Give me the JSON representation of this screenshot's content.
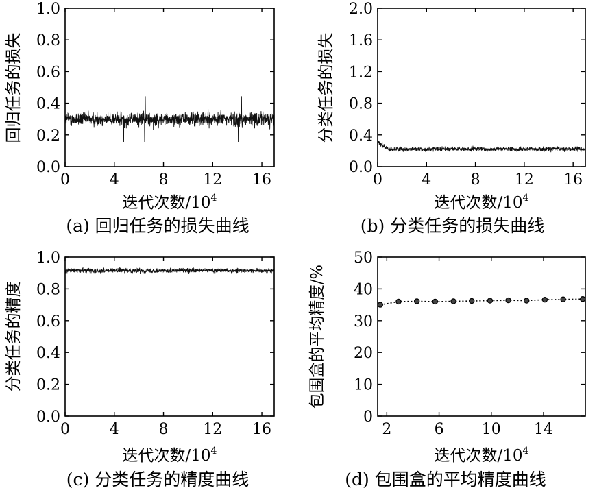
{
  "chart_data": [
    {
      "id": "a",
      "type": "line",
      "caption": "(a) 回归任务的损失曲线",
      "xlabel": "迭代次数/10",
      "xlabel_sup": "4",
      "ylabel": "回归任务的损失",
      "xlim": [
        0,
        17
      ],
      "ylim": [
        0,
        1.0
      ],
      "xticks": [
        "0",
        "4",
        "8",
        "12",
        "16"
      ],
      "yticks": [
        "0.0",
        "0.2",
        "0.4",
        "0.6",
        "0.8",
        "1.0"
      ],
      "series": [
        {
          "values_summary": {
            "mean": 0.3,
            "typical_min": 0.22,
            "typical_max": 0.38,
            "peak_max": 0.46
          }
        }
      ]
    },
    {
      "id": "b",
      "type": "line",
      "caption": "(b) 分类任务的损失曲线",
      "xlabel": "迭代次数/10",
      "xlabel_sup": "4",
      "ylabel": "分类任务的损失",
      "xlim": [
        0,
        17
      ],
      "ylim": [
        0,
        2.0
      ],
      "xticks": [
        "0",
        "4",
        "8",
        "12",
        "16"
      ],
      "yticks": [
        "0.0",
        "0.4",
        "0.8",
        "1.2",
        "1.6",
        "2.0"
      ],
      "series": [
        {
          "values_summary": {
            "start": 0.32,
            "mean": 0.22,
            "typical_min": 0.17,
            "typical_max": 0.27
          }
        }
      ]
    },
    {
      "id": "c",
      "type": "line",
      "caption": "(c) 分类任务的精度曲线",
      "xlabel": "迭代次数/10",
      "xlabel_sup": "4",
      "ylabel": "分类任务的精度",
      "xlim": [
        0,
        17
      ],
      "ylim": [
        0,
        1.0
      ],
      "xticks": [
        "0",
        "4",
        "8",
        "12",
        "16"
      ],
      "yticks": [
        "0.0",
        "0.2",
        "0.4",
        "0.6",
        "0.8",
        "1.0"
      ],
      "series": [
        {
          "values_summary": {
            "mean": 0.915,
            "typical_min": 0.89,
            "typical_max": 0.94
          }
        }
      ]
    },
    {
      "id": "d",
      "type": "line",
      "caption": "(d) 包围盒的平均精度曲线",
      "xlabel": "迭代次数/10",
      "xlabel_sup": "4",
      "ylabel": "包围盒的平均精度/%",
      "xlim": [
        1.3,
        17.2
      ],
      "ylim": [
        0,
        50
      ],
      "xticks": [
        "2",
        "6",
        "10",
        "14"
      ],
      "yticks": [
        "0",
        "10",
        "20",
        "30",
        "40",
        "50"
      ],
      "series": [
        {
          "x": [
            1.5,
            2.9,
            4.3,
            5.7,
            7.1,
            8.5,
            9.9,
            11.3,
            12.7,
            14.1,
            15.5,
            17.0
          ],
          "values": [
            35.0,
            36.0,
            36.1,
            36.0,
            36.1,
            36.2,
            36.3,
            36.4,
            36.3,
            36.6,
            36.7,
            36.8
          ]
        }
      ]
    }
  ]
}
